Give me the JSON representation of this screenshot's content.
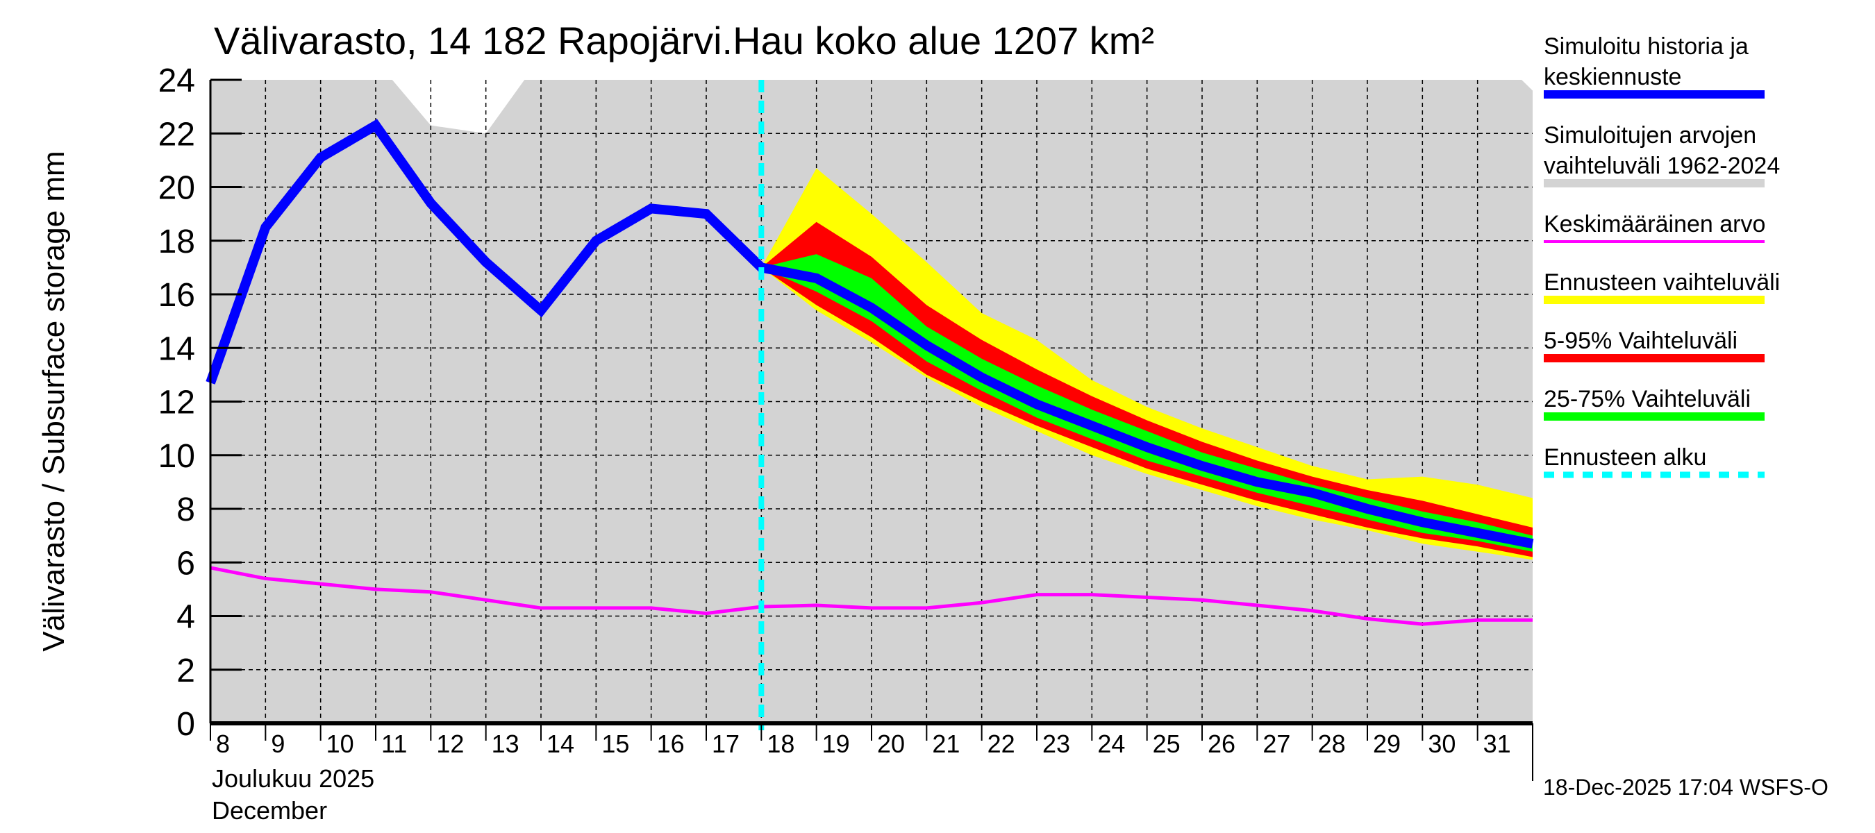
{
  "chart_data": {
    "type": "area",
    "title": "Välivarasto, 14 182 Rapojärvi.Hau koko alue 1207 km²",
    "ylabel": "Välivarasto / Subsurface storage  mm",
    "xlabel_line1": "Joulukuu  2025",
    "xlabel_line2": "December",
    "ylim": [
      0,
      24
    ],
    "xlim": [
      8,
      32
    ],
    "yticks": [
      "0",
      "2",
      "4",
      "6",
      "8",
      "10",
      "12",
      "14",
      "16",
      "18",
      "20",
      "22",
      "24"
    ],
    "xticks": [
      "8",
      "9",
      "10",
      "11",
      "12",
      "13",
      "14",
      "15",
      "16",
      "17",
      "18",
      "19",
      "20",
      "21",
      "22",
      "23",
      "24",
      "25",
      "26",
      "27",
      "28",
      "29",
      "30",
      "31"
    ],
    "grid": true,
    "legend_position": "right",
    "forecast_start": 18,
    "footer": "18-Dec-2025 17:04 WSFS-O",
    "legend": [
      {
        "label_lines": [
          "Simuloitu historia ja",
          "keskiennuste"
        ],
        "color": "#0000ff",
        "style": "thick"
      },
      {
        "label_lines": [
          "Simuloitujen arvojen",
          "vaihteluväli 1962-2024"
        ],
        "color": "#d3d3d3",
        "style": "band"
      },
      {
        "label_lines": [
          "Keskimääräinen arvo"
        ],
        "color": "#ff00ff",
        "style": "thin"
      },
      {
        "label_lines": [
          "Ennusteen vaihteluväli"
        ],
        "color": "#ffff00",
        "style": "band"
      },
      {
        "label_lines": [
          "5-95% Vaihteluväli"
        ],
        "color": "#ff0000",
        "style": "band"
      },
      {
        "label_lines": [
          "25-75% Vaihteluväli"
        ],
        "color": "#00ff00",
        "style": "band"
      },
      {
        "label_lines": [
          "Ennusteen alku"
        ],
        "color": "#00ffff",
        "style": "dashed"
      }
    ],
    "historical_range": {
      "x": [
        8,
        11.3,
        12,
        13,
        13.7,
        31.8,
        32
      ],
      "upper": [
        24,
        24,
        22.3,
        22.0,
        24,
        24,
        23.6
      ],
      "lower": [
        0,
        0,
        0,
        0,
        0,
        0,
        0
      ]
    },
    "forecast_x": [
      18,
      19,
      20,
      21,
      22,
      23,
      24,
      25,
      26,
      27,
      28,
      29,
      30,
      31,
      32
    ],
    "forecast_range": {
      "upper": [
        17,
        20.7,
        19.0,
        17.2,
        15.3,
        14.3,
        12.8,
        11.8,
        11.0,
        10.3,
        9.6,
        9.1,
        9.2,
        8.9,
        8.4
      ],
      "lower": [
        17,
        15.4,
        14.2,
        12.9,
        11.8,
        10.9,
        10.0,
        9.3,
        8.7,
        8.1,
        7.6,
        7.2,
        6.7,
        6.4,
        6.1
      ]
    },
    "p5_95": {
      "upper": [
        17,
        18.7,
        17.4,
        15.6,
        14.3,
        13.2,
        12.2,
        11.3,
        10.5,
        9.8,
        9.2,
        8.7,
        8.3,
        7.8,
        7.3
      ],
      "lower": [
        17,
        15.6,
        14.4,
        13.0,
        12.0,
        11.1,
        10.3,
        9.5,
        8.9,
        8.3,
        7.8,
        7.3,
        6.9,
        6.6,
        6.2
      ]
    },
    "p25_75": {
      "upper": [
        17,
        17.5,
        16.6,
        14.8,
        13.6,
        12.6,
        11.7,
        10.9,
        10.1,
        9.5,
        8.9,
        8.4,
        7.9,
        7.5,
        7.0
      ],
      "lower": [
        17,
        16.1,
        15.0,
        13.5,
        12.4,
        11.4,
        10.6,
        9.8,
        9.2,
        8.6,
        8.1,
        7.6,
        7.1,
        6.8,
        6.4
      ]
    },
    "simulated": {
      "x": [
        8,
        9,
        10,
        11,
        12,
        13,
        14,
        15,
        16,
        17,
        18,
        19,
        20,
        21,
        22,
        23,
        24,
        25,
        26,
        27,
        28,
        29,
        30,
        31,
        32
      ],
      "y": [
        12.7,
        18.5,
        21.1,
        22.3,
        19.4,
        17.2,
        15.4,
        18.0,
        19.2,
        19.0,
        17.0,
        16.6,
        15.5,
        14.1,
        12.9,
        11.9,
        11.1,
        10.3,
        9.6,
        9.0,
        8.6,
        8.0,
        7.5,
        7.1,
        6.7
      ]
    },
    "mean": {
      "x": [
        8,
        9,
        10,
        11,
        12,
        13,
        14,
        15,
        16,
        17,
        18,
        19,
        20,
        21,
        22,
        23,
        24,
        25,
        26,
        27,
        28,
        29,
        30,
        31,
        32
      ],
      "y": [
        5.8,
        5.4,
        5.2,
        5.0,
        4.9,
        4.6,
        4.3,
        4.3,
        4.3,
        4.1,
        4.35,
        4.4,
        4.3,
        4.3,
        4.5,
        4.8,
        4.8,
        4.7,
        4.6,
        4.4,
        4.2,
        3.9,
        3.7,
        3.85,
        3.85
      ]
    }
  }
}
